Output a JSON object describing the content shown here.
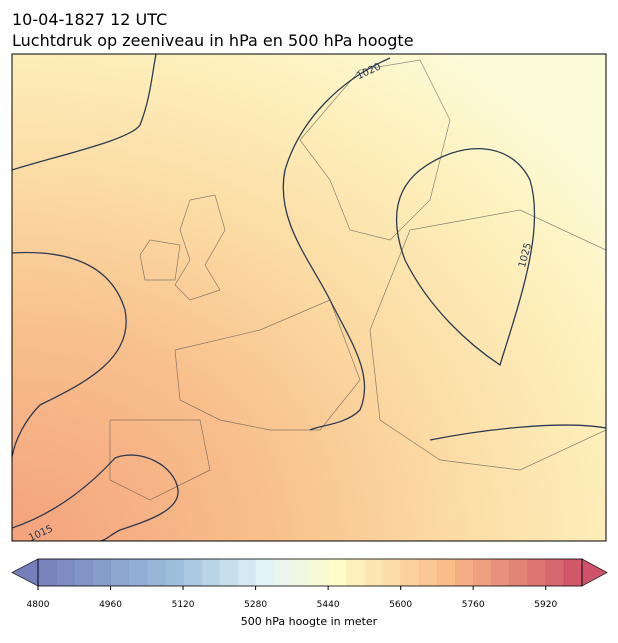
{
  "header": {
    "date": "10-04-1827 12 UTC",
    "title": "Luchtdruk op zeeniveau in hPa en 500 hPa hoogte"
  },
  "map": {
    "contour_labels": [
      "1020",
      "1025",
      "1015"
    ]
  },
  "colorbar": {
    "label": "500 hPa hoogte in meter",
    "lim": [
      4800,
      6000
    ],
    "ticks": [
      4800,
      4960,
      5120,
      5280,
      5440,
      5600,
      5760,
      5920
    ]
  }
}
